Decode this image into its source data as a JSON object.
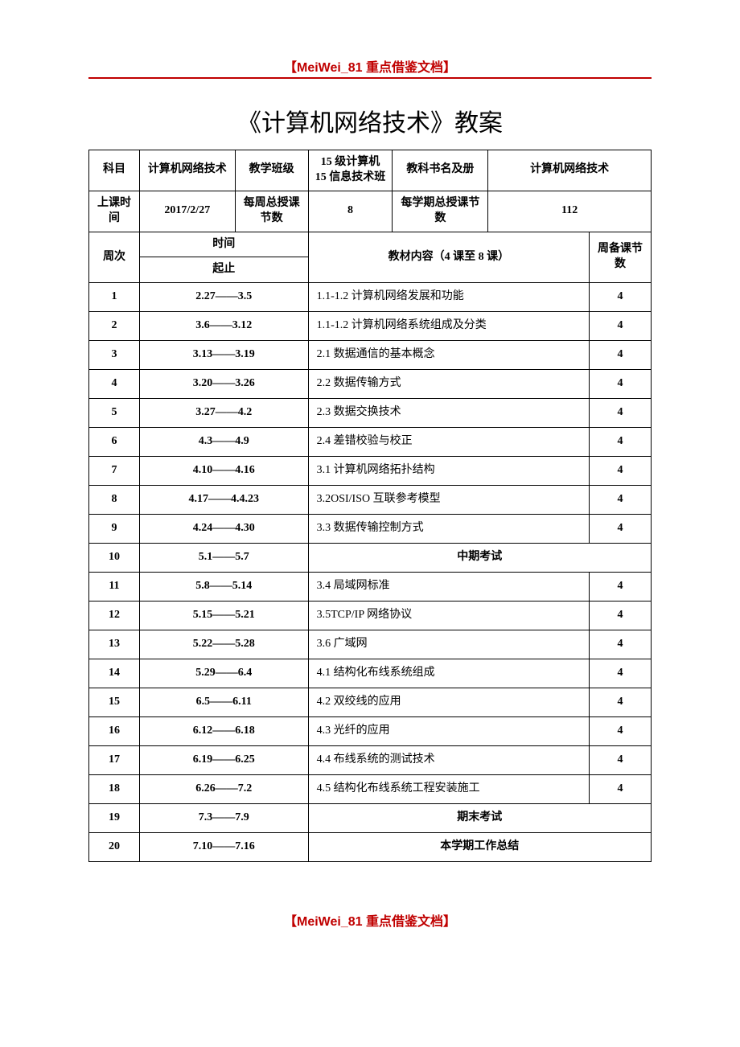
{
  "header_tag": "【MeiWei_81 重点借鉴文档】",
  "footer_tag": "【MeiWei_81 重点借鉴文档】",
  "title": "《计算机网络技术》教案",
  "info": {
    "subject_label": "科目",
    "subject_value": "计算机网络技术",
    "class_label": "教学班级",
    "class_value": "15 级计算机\n15 信息技术班",
    "book_label": "教科书名及册",
    "book_value": "计算机网络技术",
    "time_label": "上课时间",
    "time_value": "2017/2/27",
    "weekly_label": "每周总授课节数",
    "weekly_value": "8",
    "semester_label": "每学期总授课节数",
    "semester_value": "112"
  },
  "head2": {
    "week": "周次",
    "timespan1": "时间",
    "timespan2": "起止",
    "content": "教材内容（4 课至 8 课）",
    "count": "周备课节数"
  },
  "rows": [
    {
      "w": "1",
      "t": "2.27——3.5",
      "c": "1.1-1.2 计算机网络发展和功能",
      "n": "4",
      "cspan": 1
    },
    {
      "w": "2",
      "t": "3.6——3.12",
      "c": "1.1-1.2 计算机网络系统组成及分类",
      "n": "4",
      "cspan": 1
    },
    {
      "w": "3",
      "t": "3.13——3.19",
      "c": "2.1 数据通信的基本概念",
      "n": "4",
      "cspan": 1
    },
    {
      "w": "4",
      "t": "3.20——3.26",
      "c": "2.2 数据传输方式",
      "n": "4",
      "cspan": 1
    },
    {
      "w": "5",
      "t": "3.27——4.2",
      "c": "2.3 数据交换技术",
      "n": "4",
      "cspan": 1
    },
    {
      "w": "6",
      "t": "4.3——4.9",
      "c": "2.4 差错校验与校正",
      "n": "4",
      "cspan": 1
    },
    {
      "w": "7",
      "t": "4.10——4.16",
      "c": "3.1 计算机网络拓扑结构",
      "n": "4",
      "cspan": 1
    },
    {
      "w": "8",
      "t": "4.17——4.4.23",
      "c": "3.2OSI/ISO 互联参考模型",
      "n": "4",
      "cspan": 1
    },
    {
      "w": "9",
      "t": "4.24——4.30",
      "c": "3.3 数据传输控制方式",
      "n": "4",
      "cspan": 1
    },
    {
      "w": "10",
      "t": "5.1——5.7",
      "c": "中期考试",
      "n": "",
      "cspan": 2
    },
    {
      "w": "11",
      "t": "5.8——5.14",
      "c": "3.4 局域网标准",
      "n": "4",
      "cspan": 1
    },
    {
      "w": "12",
      "t": "5.15——5.21",
      "c": "3.5TCP/IP 网络协议",
      "n": "4",
      "cspan": 1
    },
    {
      "w": "13",
      "t": "5.22——5.28",
      "c": "3.6 广域网",
      "n": "4",
      "cspan": 1
    },
    {
      "w": "14",
      "t": "5.29——6.4",
      "c": "4.1 结构化布线系统组成",
      "n": "4",
      "cspan": 1
    },
    {
      "w": "15",
      "t": "6.5——6.11",
      "c": "4.2 双绞线的应用",
      "n": "4",
      "cspan": 1
    },
    {
      "w": "16",
      "t": "6.12——6.18",
      "c": "4.3 光纤的应用",
      "n": "4",
      "cspan": 1
    },
    {
      "w": "17",
      "t": "6.19——6.25",
      "c": "4.4 布线系统的测试技术",
      "n": "4",
      "cspan": 1
    },
    {
      "w": "18",
      "t": "6.26——7.2",
      "c": "4.5 结构化布线系统工程安装施工",
      "n": "4",
      "cspan": 1
    },
    {
      "w": "19",
      "t": "7.3——7.9",
      "c": "期末考试",
      "n": "",
      "cspan": 2
    },
    {
      "w": "20",
      "t": "7.10——7.16",
      "c": "本学期工作总结",
      "n": "",
      "cspan": 2
    }
  ],
  "colors": {
    "accent": "#c00000",
    "border": "#000000",
    "bg": "#ffffff"
  }
}
